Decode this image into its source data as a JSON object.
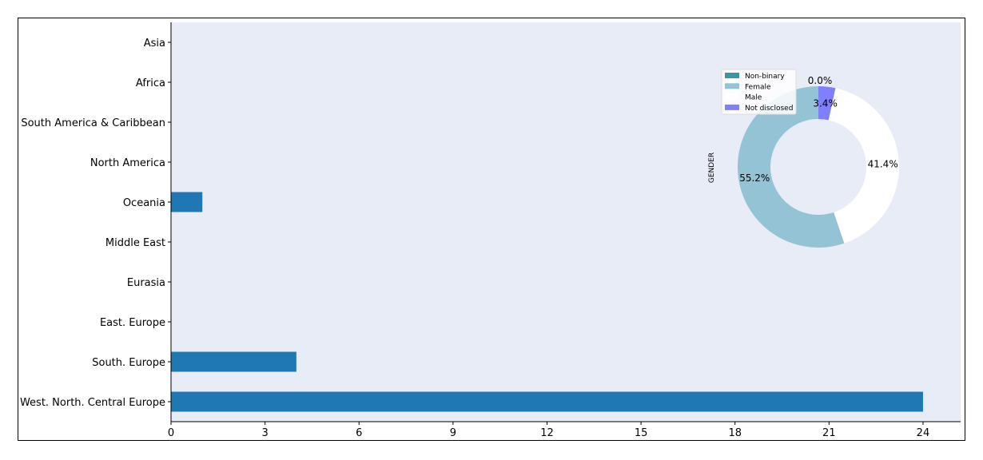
{
  "chart_data": [
    {
      "type": "bar",
      "orientation": "horizontal",
      "categories": [
        "Asia",
        "Africa",
        "South America & Caribbean",
        "North America",
        "Oceania",
        "Middle East",
        "Eurasia",
        "East. Europe",
        "South. Europe",
        "West. North. Central Europe"
      ],
      "values": [
        0,
        0,
        0,
        0,
        1,
        0,
        0,
        0,
        4,
        24
      ],
      "xticks": [
        0,
        3,
        6,
        9,
        12,
        15,
        18,
        21,
        24
      ],
      "xlim": [
        0,
        25.2
      ],
      "bar_color": "#1f77b4",
      "background": "#e8ecf6",
      "grid": false
    },
    {
      "type": "pie",
      "donut": true,
      "ylabel": "GENDER",
      "labels": [
        "Non-binary",
        "Female",
        "Male",
        "Not disclosed"
      ],
      "values": [
        0.0,
        55.2,
        41.4,
        3.4
      ],
      "data_labels": [
        "0.0%",
        "55.2%",
        "41.4%",
        "3.4%"
      ],
      "colors": [
        "#3a95a8",
        "#93c3d4",
        "#ffffff",
        "#7f7fff"
      ],
      "legend_position": "upper-left"
    }
  ]
}
